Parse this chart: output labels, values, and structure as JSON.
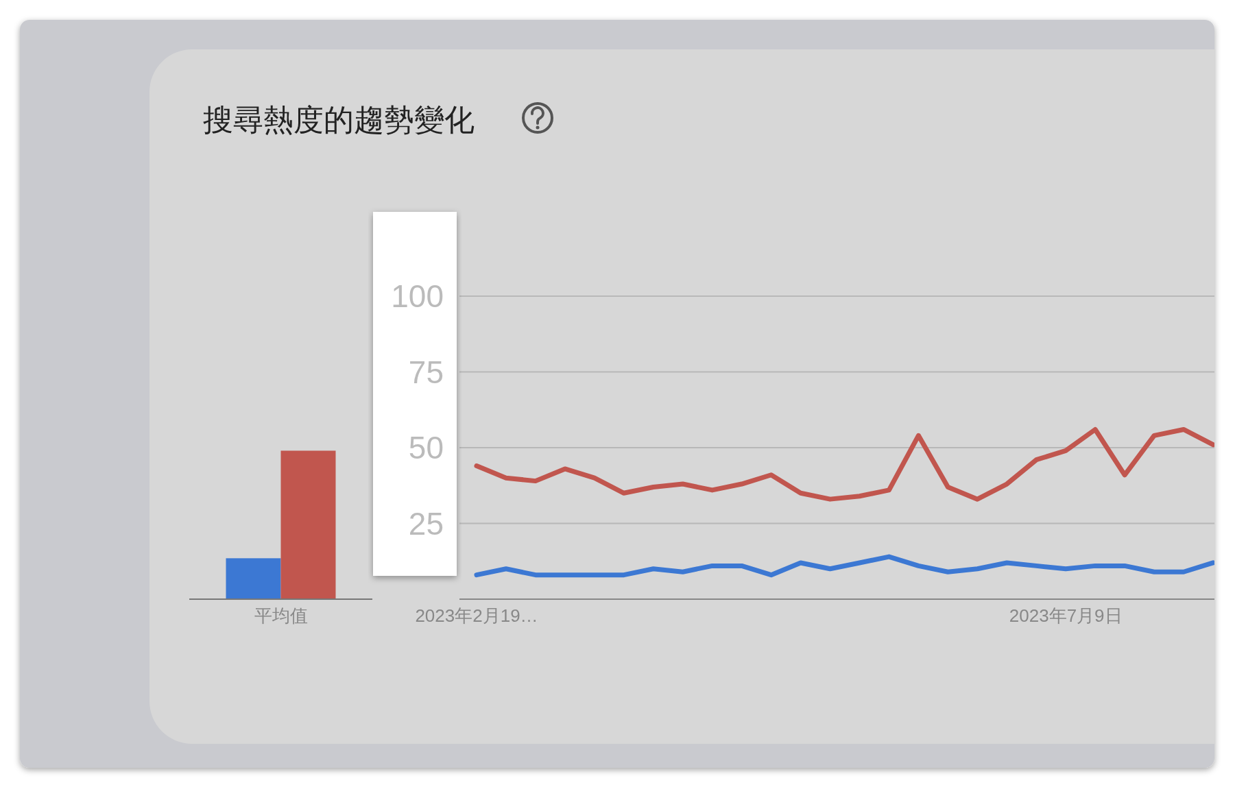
{
  "chart_data": [
    {
      "type": "bar",
      "title": "搜尋熱度的趨勢變化",
      "categories": [
        "平均值"
      ],
      "ylim": [
        0,
        100
      ],
      "tick_labels": "x",
      "series": [
        {
          "color": "#3c78d3",
          "values": [
            13.5
          ]
        },
        {
          "color": "#c1564e",
          "values": [
            49
          ]
        }
      ]
    },
    {
      "type": "line",
      "categories": [
        "2023年2月19…",
        null,
        null,
        null,
        null,
        null,
        null,
        null,
        null,
        null,
        null,
        null,
        null,
        null,
        null,
        null,
        null,
        null,
        null,
        null,
        "2023年7月9日",
        null,
        null,
        null,
        null,
        null
      ],
      "ylim": [
        0,
        100
      ],
      "yticks": [
        25,
        50,
        75,
        100
      ],
      "grid": "y",
      "series": [
        {
          "color": "#c1564e",
          "values": [
            44,
            40,
            39,
            43,
            40,
            35,
            37,
            38,
            36,
            38,
            41,
            35,
            33,
            34,
            36,
            54,
            37,
            33,
            38,
            46,
            49,
            56,
            41,
            54,
            56,
            51
          ]
        },
        {
          "color": "#3c78d3",
          "values": [
            8,
            10,
            8,
            8,
            8,
            8,
            10,
            9,
            11,
            11,
            8,
            12,
            10,
            12,
            14,
            11,
            9,
            10,
            12,
            11,
            10,
            11,
            11,
            9,
            9,
            12
          ]
        }
      ]
    }
  ]
}
